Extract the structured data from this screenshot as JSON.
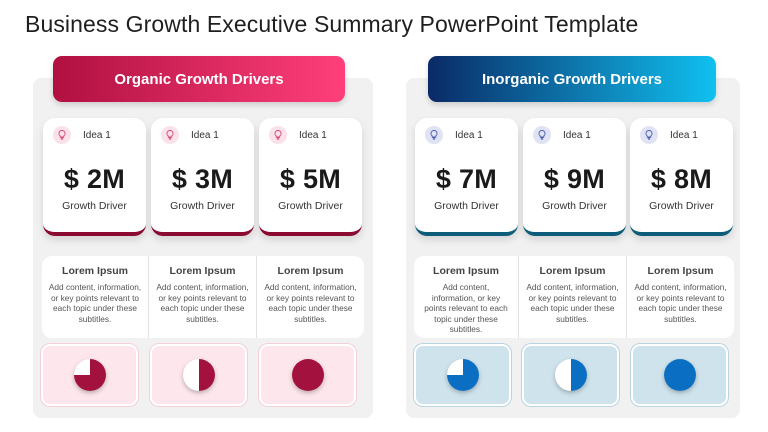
{
  "slide": {
    "title": "Business Growth Executive Summary PowerPoint Template"
  },
  "colors": {
    "organic_primary": "#a3123f",
    "organic_gradient_end": "#ff3f7a",
    "inorganic_primary": "#0a2a66",
    "inorganic_gradient_end": "#10c0f0",
    "organic_pie": "#a3123f",
    "inorganic_pie": "#0a6fc2"
  },
  "organic": {
    "header": "Organic Growth Drivers",
    "cards": [
      {
        "idea": "Idea 1",
        "amount": "$ 2M",
        "label": "Growth Driver",
        "icon": "lightbulb-icon"
      },
      {
        "idea": "Idea 1",
        "amount": "$ 3M",
        "label": "Growth Driver",
        "icon": "lightbulb-icon"
      },
      {
        "idea": "Idea 1",
        "amount": "$ 5M",
        "label": "Growth Driver",
        "icon": "lightbulb-icon"
      }
    ],
    "topics": [
      {
        "title": "Lorem Ipsum",
        "body": "Add content, information, or key points relevant to each topic under these subtitles."
      },
      {
        "title": "Lorem Ipsum",
        "body": "Add content, information, or key points relevant to each topic under these subtitles."
      },
      {
        "title": "Lorem Ipsum",
        "body": "Add content, information, or key points relevant to each topic under these subtitles."
      }
    ],
    "pies": [
      {
        "fill_fraction": 0.75
      },
      {
        "fill_fraction": 0.5
      },
      {
        "fill_fraction": 1.0
      }
    ]
  },
  "inorganic": {
    "header": "Inorganic Growth Drivers",
    "cards": [
      {
        "idea": "Idea 1",
        "amount": "$ 7M",
        "label": "Growth Driver",
        "icon": "lightbulb-icon"
      },
      {
        "idea": "Idea 1",
        "amount": "$ 9M",
        "label": "Growth Driver",
        "icon": "lightbulb-icon"
      },
      {
        "idea": "Idea 1",
        "amount": "$ 8M",
        "label": "Growth Driver",
        "icon": "lightbulb-icon"
      }
    ],
    "topics": [
      {
        "title": "Lorem Ipsum",
        "body": "Add content, information, or key points relevant to each topic under these subtitles."
      },
      {
        "title": "Lorem Ipsum",
        "body": "Add content, information, or key points relevant to each topic under these subtitles."
      },
      {
        "title": "Lorem Ipsum",
        "body": "Add content, information, or key points relevant to each topic under these subtitles."
      }
    ],
    "pies": [
      {
        "fill_fraction": 0.75
      },
      {
        "fill_fraction": 0.5
      },
      {
        "fill_fraction": 1.0
      }
    ]
  }
}
